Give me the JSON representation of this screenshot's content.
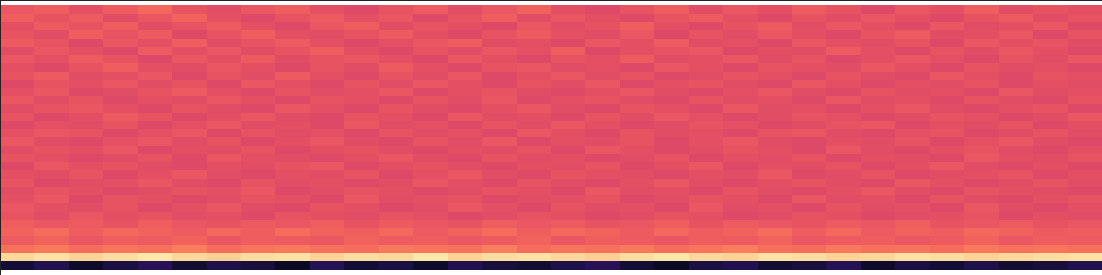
{
  "chart_data": {
    "type": "heatmap",
    "color": "magma",
    "tick_labels": false,
    "zlim": [
      0,
      1
    ],
    "cells": [
      [
        0.64,
        0.66,
        0.62,
        0.65,
        0.68,
        0.63,
        0.61,
        0.64,
        0.66,
        0.62,
        0.6,
        0.63,
        0.65,
        0.61,
        0.64,
        0.67,
        0.62,
        0.6,
        0.63,
        0.66,
        0.61,
        0.64,
        0.62,
        0.65,
        0.63,
        0.6,
        0.64,
        0.62,
        0.66,
        0.61,
        0.63,
        0.62
      ],
      [
        0.66,
        0.63,
        0.65,
        0.61,
        0.64,
        0.67,
        0.62,
        0.6,
        0.63,
        0.65,
        0.62,
        0.64,
        0.6,
        0.63,
        0.66,
        0.61,
        0.64,
        0.62,
        0.6,
        0.63,
        0.65,
        0.62,
        0.6,
        0.63,
        0.61,
        0.64,
        0.62,
        0.6,
        0.63,
        0.65,
        0.61,
        0.63
      ],
      [
        0.62,
        0.65,
        0.63,
        0.66,
        0.61,
        0.63,
        0.65,
        0.62,
        0.6,
        0.64,
        0.66,
        0.61,
        0.63,
        0.62,
        0.6,
        0.64,
        0.61,
        0.63,
        0.66,
        0.62,
        0.6,
        0.63,
        0.65,
        0.61,
        0.64,
        0.62,
        0.6,
        0.64,
        0.61,
        0.62,
        0.64,
        0.6
      ],
      [
        0.63,
        0.61,
        0.66,
        0.63,
        0.65,
        0.6,
        0.63,
        0.66,
        0.62,
        0.61,
        0.63,
        0.65,
        0.62,
        0.6,
        0.63,
        0.65,
        0.62,
        0.61,
        0.64,
        0.6,
        0.63,
        0.61,
        0.64,
        0.62,
        0.6,
        0.63,
        0.65,
        0.61,
        0.62,
        0.64,
        0.6,
        0.63
      ],
      [
        0.65,
        0.63,
        0.6,
        0.64,
        0.62,
        0.66,
        0.61,
        0.63,
        0.65,
        0.62,
        0.6,
        0.62,
        0.64,
        0.66,
        0.61,
        0.62,
        0.6,
        0.64,
        0.62,
        0.65,
        0.61,
        0.62,
        0.6,
        0.64,
        0.62,
        0.61,
        0.63,
        0.6,
        0.64,
        0.62,
        0.63,
        0.61
      ],
      [
        0.61,
        0.64,
        0.62,
        0.6,
        0.65,
        0.62,
        0.64,
        0.61,
        0.63,
        0.66,
        0.62,
        0.6,
        0.63,
        0.61,
        0.64,
        0.62,
        0.66,
        0.6,
        0.62,
        0.63,
        0.64,
        0.6,
        0.62,
        0.61,
        0.65,
        0.62,
        0.6,
        0.63,
        0.61,
        0.64,
        0.62,
        0.6
      ],
      [
        0.64,
        0.62,
        0.65,
        0.63,
        0.6,
        0.64,
        0.62,
        0.65,
        0.61,
        0.63,
        0.64,
        0.62,
        0.6,
        0.64,
        0.62,
        0.6,
        0.63,
        0.62,
        0.65,
        0.61,
        0.62,
        0.64,
        0.61,
        0.63,
        0.6,
        0.62,
        0.64,
        0.62,
        0.6,
        0.63,
        0.61,
        0.64
      ],
      [
        0.62,
        0.6,
        0.63,
        0.66,
        0.62,
        0.61,
        0.64,
        0.62,
        0.6,
        0.63,
        0.61,
        0.65,
        0.62,
        0.6,
        0.63,
        0.64,
        0.61,
        0.62,
        0.6,
        0.64,
        0.62,
        0.6,
        0.63,
        0.62,
        0.61,
        0.64,
        0.62,
        0.6,
        0.63,
        0.61,
        0.62,
        0.6
      ],
      [
        0.63,
        0.65,
        0.61,
        0.62,
        0.64,
        0.6,
        0.63,
        0.61,
        0.65,
        0.62,
        0.6,
        0.63,
        0.61,
        0.64,
        0.6,
        0.62,
        0.64,
        0.61,
        0.63,
        0.6,
        0.61,
        0.63,
        0.62,
        0.6,
        0.63,
        0.61,
        0.6,
        0.64,
        0.62,
        0.6,
        0.63,
        0.62
      ],
      [
        0.6,
        0.63,
        0.62,
        0.64,
        0.61,
        0.63,
        0.6,
        0.64,
        0.62,
        0.6,
        0.63,
        0.61,
        0.64,
        0.62,
        0.6,
        0.63,
        0.61,
        0.64,
        0.6,
        0.62,
        0.63,
        0.61,
        0.6,
        0.64,
        0.62,
        0.6,
        0.62,
        0.61,
        0.63,
        0.6,
        0.62,
        0.61
      ],
      [
        0.62,
        0.64,
        0.6,
        0.61,
        0.63,
        0.65,
        0.62,
        0.6,
        0.63,
        0.61,
        0.62,
        0.64,
        0.6,
        0.62,
        0.63,
        0.61,
        0.6,
        0.62,
        0.64,
        0.61,
        0.6,
        0.62,
        0.64,
        0.61,
        0.6,
        0.63,
        0.61,
        0.62,
        0.6,
        0.64,
        0.61,
        0.62
      ],
      [
        0.64,
        0.61,
        0.63,
        0.6,
        0.62,
        0.61,
        0.64,
        0.62,
        0.6,
        0.63,
        0.62,
        0.6,
        0.63,
        0.61,
        0.64,
        0.6,
        0.62,
        0.63,
        0.61,
        0.6,
        0.63,
        0.61,
        0.62,
        0.6,
        0.64,
        0.61,
        0.62,
        0.6,
        0.63,
        0.61,
        0.6,
        0.63
      ],
      [
        0.61,
        0.63,
        0.64,
        0.62,
        0.6,
        0.63,
        0.61,
        0.6,
        0.64,
        0.62,
        0.6,
        0.63,
        0.61,
        0.6,
        0.62,
        0.64,
        0.61,
        0.6,
        0.63,
        0.62,
        0.6,
        0.64,
        0.61,
        0.62,
        0.6,
        0.62,
        0.64,
        0.61,
        0.6,
        0.62,
        0.63,
        0.6
      ],
      [
        0.63,
        0.6,
        0.62,
        0.65,
        0.63,
        0.6,
        0.62,
        0.64,
        0.61,
        0.6,
        0.63,
        0.62,
        0.6,
        0.64,
        0.61,
        0.62,
        0.6,
        0.63,
        0.61,
        0.64,
        0.62,
        0.6,
        0.61,
        0.63,
        0.62,
        0.6,
        0.61,
        0.63,
        0.62,
        0.6,
        0.61,
        0.64
      ],
      [
        0.6,
        0.62,
        0.61,
        0.63,
        0.6,
        0.62,
        0.64,
        0.61,
        0.62,
        0.6,
        0.64,
        0.61,
        0.62,
        0.6,
        0.63,
        0.61,
        0.64,
        0.62,
        0.6,
        0.61,
        0.63,
        0.62,
        0.6,
        0.61,
        0.63,
        0.64,
        0.6,
        0.62,
        0.61,
        0.63,
        0.6,
        0.62
      ],
      [
        0.62,
        0.64,
        0.63,
        0.6,
        0.62,
        0.64,
        0.6,
        0.63,
        0.61,
        0.62,
        0.6,
        0.63,
        0.61,
        0.62,
        0.6,
        0.64,
        0.62,
        0.6,
        0.63,
        0.61,
        0.62,
        0.6,
        0.63,
        0.64,
        0.61,
        0.6,
        0.62,
        0.63,
        0.6,
        0.61,
        0.63,
        0.61
      ],
      [
        0.64,
        0.61,
        0.6,
        0.62,
        0.64,
        0.61,
        0.63,
        0.6,
        0.62,
        0.64,
        0.61,
        0.6,
        0.63,
        0.61,
        0.64,
        0.6,
        0.62,
        0.61,
        0.63,
        0.6,
        0.62,
        0.64,
        0.61,
        0.6,
        0.62,
        0.61,
        0.63,
        0.6,
        0.62,
        0.64,
        0.61,
        0.6
      ],
      [
        0.61,
        0.63,
        0.62,
        0.64,
        0.6,
        0.62,
        0.61,
        0.63,
        0.6,
        0.62,
        0.63,
        0.61,
        0.6,
        0.62,
        0.61,
        0.63,
        0.6,
        0.64,
        0.62,
        0.6,
        0.61,
        0.63,
        0.62,
        0.6,
        0.64,
        0.61,
        0.6,
        0.62,
        0.63,
        0.61,
        0.6,
        0.62
      ],
      [
        0.63,
        0.62,
        0.6,
        0.61,
        0.63,
        0.6,
        0.64,
        0.62,
        0.61,
        0.6,
        0.62,
        0.64,
        0.61,
        0.6,
        0.63,
        0.61,
        0.62,
        0.6,
        0.61,
        0.63,
        0.6,
        0.62,
        0.61,
        0.63,
        0.6,
        0.62,
        0.61,
        0.6,
        0.64,
        0.62,
        0.61,
        0.63
      ],
      [
        0.6,
        0.64,
        0.62,
        0.63,
        0.61,
        0.6,
        0.62,
        0.61,
        0.63,
        0.64,
        0.6,
        0.62,
        0.63,
        0.61,
        0.6,
        0.62,
        0.61,
        0.63,
        0.6,
        0.62,
        0.64,
        0.6,
        0.62,
        0.61,
        0.63,
        0.6,
        0.62,
        0.64,
        0.61,
        0.6,
        0.62,
        0.6
      ],
      [
        0.62,
        0.61,
        0.63,
        0.6,
        0.62,
        0.64,
        0.61,
        0.6,
        0.62,
        0.61,
        0.63,
        0.6,
        0.62,
        0.64,
        0.61,
        0.6,
        0.63,
        0.62,
        0.61,
        0.6,
        0.62,
        0.61,
        0.64,
        0.6,
        0.61,
        0.63,
        0.6,
        0.61,
        0.62,
        0.63,
        0.6,
        0.62
      ],
      [
        0.63,
        0.6,
        0.61,
        0.62,
        0.64,
        0.61,
        0.6,
        0.63,
        0.61,
        0.62,
        0.6,
        0.61,
        0.64,
        0.62,
        0.6,
        0.63,
        0.61,
        0.6,
        0.62,
        0.64,
        0.61,
        0.6,
        0.62,
        0.63,
        0.61,
        0.6,
        0.64,
        0.62,
        0.6,
        0.61,
        0.63,
        0.61
      ],
      [
        0.61,
        0.63,
        0.62,
        0.6,
        0.61,
        0.63,
        0.62,
        0.64,
        0.6,
        0.61,
        0.63,
        0.62,
        0.6,
        0.61,
        0.63,
        0.62,
        0.6,
        0.64,
        0.61,
        0.62,
        0.6,
        0.63,
        0.61,
        0.6,
        0.62,
        0.64,
        0.61,
        0.6,
        0.63,
        0.62,
        0.61,
        0.6
      ],
      [
        0.62,
        0.64,
        0.6,
        0.63,
        0.62,
        0.6,
        0.61,
        0.63,
        0.62,
        0.6,
        0.64,
        0.61,
        0.62,
        0.63,
        0.6,
        0.61,
        0.62,
        0.63,
        0.6,
        0.61,
        0.63,
        0.62,
        0.6,
        0.64,
        0.61,
        0.62,
        0.6,
        0.63,
        0.61,
        0.6,
        0.62,
        0.63
      ],
      [
        0.64,
        0.62,
        0.61,
        0.63,
        0.6,
        0.62,
        0.64,
        0.61,
        0.6,
        0.63,
        0.62,
        0.6,
        0.61,
        0.64,
        0.62,
        0.6,
        0.63,
        0.61,
        0.62,
        0.6,
        0.64,
        0.61,
        0.62,
        0.6,
        0.63,
        0.61,
        0.62,
        0.6,
        0.64,
        0.61,
        0.6,
        0.62
      ],
      [
        0.63,
        0.61,
        0.64,
        0.62,
        0.63,
        0.61,
        0.62,
        0.6,
        0.63,
        0.62,
        0.61,
        0.63,
        0.62,
        0.6,
        0.61,
        0.63,
        0.62,
        0.6,
        0.61,
        0.63,
        0.62,
        0.6,
        0.61,
        0.63,
        0.62,
        0.6,
        0.61,
        0.62,
        0.63,
        0.6,
        0.62,
        0.61
      ],
      [
        0.66,
        0.64,
        0.65,
        0.63,
        0.66,
        0.64,
        0.63,
        0.65,
        0.64,
        0.66,
        0.63,
        0.65,
        0.64,
        0.63,
        0.66,
        0.64,
        0.65,
        0.63,
        0.64,
        0.66,
        0.63,
        0.65,
        0.64,
        0.63,
        0.65,
        0.64,
        0.66,
        0.63,
        0.64,
        0.65,
        0.63,
        0.64
      ],
      [
        0.67,
        0.69,
        0.66,
        0.68,
        0.67,
        0.65,
        0.68,
        0.66,
        0.69,
        0.67,
        0.66,
        0.68,
        0.65,
        0.67,
        0.69,
        0.66,
        0.68,
        0.67,
        0.65,
        0.68,
        0.66,
        0.67,
        0.69,
        0.66,
        0.68,
        0.65,
        0.67,
        0.66,
        0.68,
        0.67,
        0.65,
        0.66
      ],
      [
        0.65,
        0.67,
        0.64,
        0.66,
        0.65,
        0.67,
        0.64,
        0.66,
        0.65,
        0.64,
        0.67,
        0.65,
        0.66,
        0.64,
        0.65,
        0.67,
        0.64,
        0.66,
        0.65,
        0.64,
        0.66,
        0.65,
        0.67,
        0.64,
        0.65,
        0.66,
        0.64,
        0.65,
        0.67,
        0.64,
        0.66,
        0.65
      ],
      [
        0.7,
        0.72,
        0.69,
        0.71,
        0.7,
        0.73,
        0.69,
        0.71,
        0.72,
        0.7,
        0.69,
        0.72,
        0.71,
        0.7,
        0.73,
        0.69,
        0.71,
        0.7,
        0.72,
        0.69,
        0.71,
        0.73,
        0.7,
        0.69,
        0.72,
        0.7,
        0.71,
        0.69,
        0.72,
        0.7,
        0.71,
        0.7
      ],
      [
        0.92,
        0.94,
        0.91,
        0.93,
        0.95,
        0.92,
        0.9,
        0.93,
        0.94,
        0.91,
        0.93,
        0.92,
        0.95,
        0.91,
        0.93,
        0.94,
        0.92,
        0.9,
        0.93,
        0.95,
        0.92,
        0.91,
        0.94,
        0.93,
        0.91,
        0.92,
        0.94,
        0.93,
        0.91,
        0.92,
        0.93,
        0.94
      ],
      [
        0.1,
        0.14,
        0.08,
        0.12,
        0.16,
        0.09,
        0.13,
        0.11,
        0.07,
        0.15,
        0.1,
        0.12,
        0.08,
        0.14,
        0.11,
        0.09,
        0.13,
        0.16,
        0.1,
        0.07,
        0.12,
        0.14,
        0.09,
        0.11,
        0.15,
        0.08,
        0.12,
        0.1,
        0.13,
        0.09,
        0.11,
        0.14
      ]
    ]
  }
}
